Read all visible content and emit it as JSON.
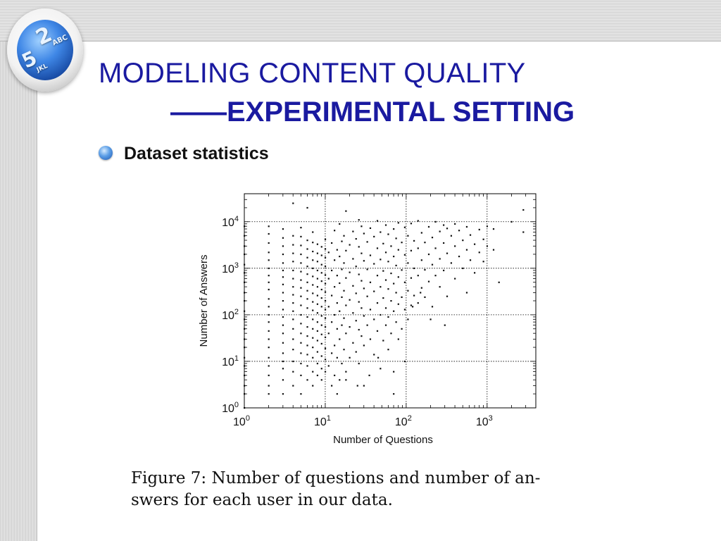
{
  "slide": {
    "title": "MODELING CONTENT QUALITY",
    "subtitle": "——EXPERIMENTAL SETTING",
    "bullet": "Dataset statistics",
    "badge_keys": [
      "2",
      "ABC",
      "5",
      "JKL"
    ],
    "caption_line1": "Figure 7:  Number of questions and number of an-",
    "caption_line2": "swers for each user in our data."
  },
  "colors": {
    "title": "#1a1aa0",
    "points": "#111111",
    "grid": "#000000"
  },
  "chart_data": {
    "type": "scatter",
    "xlabel": "Number of Questions",
    "ylabel": "Number of Answers",
    "xscale": "log",
    "yscale": "log",
    "xlim": [
      1,
      4000
    ],
    "ylim": [
      1,
      40000
    ],
    "grid": true,
    "xticks": [
      1,
      10,
      100,
      1000
    ],
    "yticks": [
      1,
      10,
      100,
      1000,
      10000
    ],
    "xtick_labels": [
      {
        "base": "10",
        "exp": "0"
      },
      {
        "base": "10",
        "exp": "1"
      },
      {
        "base": "10",
        "exp": "2"
      },
      {
        "base": "10",
        "exp": "3"
      }
    ],
    "ytick_labels": [
      {
        "base": "10",
        "exp": "0"
      },
      {
        "base": "10",
        "exp": "1"
      },
      {
        "base": "10",
        "exp": "2"
      },
      {
        "base": "10",
        "exp": "3"
      },
      {
        "base": "10",
        "exp": "4"
      }
    ],
    "points": [
      [
        1,
        1
      ],
      [
        1,
        2
      ],
      [
        1,
        3
      ],
      [
        1,
        5
      ],
      [
        1,
        8
      ],
      [
        1,
        12
      ],
      [
        1,
        20
      ],
      [
        1,
        30
      ],
      [
        1,
        50
      ],
      [
        1,
        80
      ],
      [
        1,
        120
      ],
      [
        1,
        200
      ],
      [
        1,
        300
      ],
      [
        1,
        500
      ],
      [
        1,
        800
      ],
      [
        1,
        1200
      ],
      [
        1,
        2000
      ],
      [
        1,
        3000
      ],
      [
        1,
        5000
      ],
      [
        1,
        8000
      ],
      [
        2,
        2
      ],
      [
        2,
        3
      ],
      [
        2,
        5
      ],
      [
        2,
        8
      ],
      [
        2,
        12
      ],
      [
        2,
        20
      ],
      [
        2,
        30
      ],
      [
        2,
        45
      ],
      [
        2,
        70
      ],
      [
        2,
        100
      ],
      [
        2,
        150
      ],
      [
        2,
        220
      ],
      [
        2,
        350
      ],
      [
        2,
        500
      ],
      [
        2,
        700
      ],
      [
        2,
        1000
      ],
      [
        2,
        1500
      ],
      [
        2,
        2200
      ],
      [
        2,
        3500
      ],
      [
        2,
        5500
      ],
      [
        2,
        8000
      ],
      [
        3,
        2
      ],
      [
        3,
        4
      ],
      [
        3,
        7
      ],
      [
        3,
        10
      ],
      [
        3,
        15
      ],
      [
        3,
        25
      ],
      [
        3,
        40
      ],
      [
        3,
        60
      ],
      [
        3,
        90
      ],
      [
        3,
        130
      ],
      [
        3,
        200
      ],
      [
        3,
        300
      ],
      [
        3,
        450
      ],
      [
        3,
        650
      ],
      [
        3,
        900
      ],
      [
        3,
        1300
      ],
      [
        3,
        2000
      ],
      [
        3,
        3000
      ],
      [
        3,
        4500
      ],
      [
        3,
        7000
      ],
      [
        4,
        3
      ],
      [
        4,
        6
      ],
      [
        4,
        10
      ],
      [
        4,
        18
      ],
      [
        4,
        30
      ],
      [
        4,
        50
      ],
      [
        4,
        80
      ],
      [
        4,
        120
      ],
      [
        4,
        180
      ],
      [
        4,
        270
      ],
      [
        4,
        400
      ],
      [
        4,
        600
      ],
      [
        4,
        900
      ],
      [
        4,
        1400
      ],
      [
        4,
        2100
      ],
      [
        4,
        3200
      ],
      [
        4,
        5000
      ],
      [
        4,
        25000
      ],
      [
        5,
        2
      ],
      [
        5,
        5
      ],
      [
        5,
        9
      ],
      [
        5,
        15
      ],
      [
        5,
        25
      ],
      [
        5,
        40
      ],
      [
        5,
        65
      ],
      [
        5,
        100
      ],
      [
        5,
        160
      ],
      [
        5,
        250
      ],
      [
        5,
        380
      ],
      [
        5,
        560
      ],
      [
        5,
        850
      ],
      [
        5,
        1300
      ],
      [
        5,
        2000
      ],
      [
        5,
        3100
      ],
      [
        5,
        4800
      ],
      [
        5,
        7500
      ],
      [
        6,
        4
      ],
      [
        6,
        8
      ],
      [
        6,
        14
      ],
      [
        6,
        22
      ],
      [
        6,
        35
      ],
      [
        6,
        55
      ],
      [
        6,
        90
      ],
      [
        6,
        140
      ],
      [
        6,
        220
      ],
      [
        6,
        330
      ],
      [
        6,
        500
      ],
      [
        6,
        750
      ],
      [
        6,
        1100
      ],
      [
        6,
        1700
      ],
      [
        6,
        2600
      ],
      [
        6,
        4000
      ],
      [
        6,
        20000
      ],
      [
        7,
        3
      ],
      [
        7,
        6
      ],
      [
        7,
        12
      ],
      [
        7,
        20
      ],
      [
        7,
        32
      ],
      [
        7,
        50
      ],
      [
        7,
        80
      ],
      [
        7,
        125
      ],
      [
        7,
        190
      ],
      [
        7,
        290
      ],
      [
        7,
        440
      ],
      [
        7,
        670
      ],
      [
        7,
        1000
      ],
      [
        7,
        1500
      ],
      [
        7,
        2300
      ],
      [
        7,
        3600
      ],
      [
        7,
        6000
      ],
      [
        8,
        5
      ],
      [
        8,
        9
      ],
      [
        8,
        16
      ],
      [
        8,
        28
      ],
      [
        8,
        45
      ],
      [
        8,
        70
      ],
      [
        8,
        110
      ],
      [
        8,
        170
      ],
      [
        8,
        260
      ],
      [
        8,
        400
      ],
      [
        8,
        600
      ],
      [
        8,
        900
      ],
      [
        8,
        1400
      ],
      [
        8,
        2100
      ],
      [
        8,
        3300
      ],
      [
        9,
        4
      ],
      [
        9,
        7
      ],
      [
        9,
        13
      ],
      [
        9,
        24
      ],
      [
        9,
        38
      ],
      [
        9,
        60
      ],
      [
        9,
        95
      ],
      [
        9,
        150
      ],
      [
        9,
        230
      ],
      [
        9,
        350
      ],
      [
        9,
        530
      ],
      [
        9,
        800
      ],
      [
        9,
        1200
      ],
      [
        9,
        1900
      ],
      [
        9,
        2900
      ],
      [
        10,
        6
      ],
      [
        10,
        11
      ],
      [
        10,
        19
      ],
      [
        10,
        33
      ],
      [
        10,
        55
      ],
      [
        10,
        85
      ],
      [
        10,
        130
      ],
      [
        10,
        200
      ],
      [
        10,
        310
      ],
      [
        10,
        470
      ],
      [
        10,
        720
      ],
      [
        10,
        1100
      ],
      [
        10,
        1700
      ],
      [
        10,
        2600
      ],
      [
        10,
        4200
      ],
      [
        11,
        8
      ],
      [
        11,
        40
      ],
      [
        11,
        150
      ],
      [
        11,
        600
      ],
      [
        11,
        2200
      ],
      [
        12,
        3
      ],
      [
        12,
        15
      ],
      [
        12,
        70
      ],
      [
        12,
        260
      ],
      [
        12,
        900
      ],
      [
        12,
        3500
      ],
      [
        13,
        5
      ],
      [
        13,
        22
      ],
      [
        13,
        100
      ],
      [
        13,
        400
      ],
      [
        13,
        1500
      ],
      [
        13,
        6500
      ],
      [
        14,
        2
      ],
      [
        14,
        12
      ],
      [
        14,
        50
      ],
      [
        14,
        180
      ],
      [
        14,
        700
      ],
      [
        14,
        2500
      ],
      [
        15,
        4
      ],
      [
        15,
        30
      ],
      [
        15,
        120
      ],
      [
        15,
        480
      ],
      [
        15,
        1800
      ],
      [
        15,
        9000
      ],
      [
        16,
        9
      ],
      [
        16,
        60
      ],
      [
        16,
        240
      ],
      [
        16,
        950
      ],
      [
        16,
        3800
      ],
      [
        17,
        18
      ],
      [
        17,
        85
      ],
      [
        17,
        330
      ],
      [
        17,
        1300
      ],
      [
        17,
        5000
      ],
      [
        18,
        6
      ],
      [
        18,
        40
      ],
      [
        18,
        160
      ],
      [
        18,
        620
      ],
      [
        18,
        2400
      ],
      [
        18,
        17000
      ],
      [
        20,
        12
      ],
      [
        20,
        55
      ],
      [
        20,
        210
      ],
      [
        20,
        820
      ],
      [
        20,
        3200
      ],
      [
        22,
        25
      ],
      [
        22,
        110
      ],
      [
        22,
        420
      ],
      [
        22,
        1600
      ],
      [
        22,
        6200
      ],
      [
        24,
        16
      ],
      [
        24,
        75
      ],
      [
        24,
        290
      ],
      [
        24,
        1100
      ],
      [
        24,
        4300
      ],
      [
        26,
        9
      ],
      [
        26,
        48
      ],
      [
        26,
        190
      ],
      [
        26,
        740
      ],
      [
        26,
        2900
      ],
      [
        26,
        11000
      ],
      [
        28,
        35
      ],
      [
        28,
        140
      ],
      [
        28,
        540
      ],
      [
        28,
        2100
      ],
      [
        28,
        8000
      ],
      [
        30,
        3
      ],
      [
        30,
        22
      ],
      [
        30,
        95
      ],
      [
        30,
        370
      ],
      [
        30,
        1450
      ],
      [
        30,
        5600
      ],
      [
        33,
        60
      ],
      [
        33,
        250
      ],
      [
        33,
        950
      ],
      [
        33,
        3700
      ],
      [
        36,
        30
      ],
      [
        36,
        130
      ],
      [
        36,
        500
      ],
      [
        36,
        1900
      ],
      [
        36,
        7300
      ],
      [
        40,
        14
      ],
      [
        40,
        80
      ],
      [
        40,
        320
      ],
      [
        40,
        1250
      ],
      [
        40,
        4800
      ],
      [
        44,
        45
      ],
      [
        44,
        180
      ],
      [
        44,
        700
      ],
      [
        44,
        2700
      ],
      [
        44,
        10500
      ],
      [
        48,
        7
      ],
      [
        48,
        100
      ],
      [
        48,
        400
      ],
      [
        48,
        1550
      ],
      [
        48,
        6000
      ],
      [
        52,
        28
      ],
      [
        52,
        230
      ],
      [
        52,
        880
      ],
      [
        52,
        3400
      ],
      [
        56,
        60
      ],
      [
        56,
        140
      ],
      [
        56,
        560
      ],
      [
        56,
        2200
      ],
      [
        56,
        8500
      ],
      [
        60,
        18
      ],
      [
        60,
        90
      ],
      [
        60,
        360
      ],
      [
        60,
        1400
      ],
      [
        60,
        5400
      ],
      [
        65,
        40
      ],
      [
        65,
        200
      ],
      [
        65,
        780
      ],
      [
        65,
        3000
      ],
      [
        70,
        6
      ],
      [
        70,
        120
      ],
      [
        70,
        470
      ],
      [
        70,
        1800
      ],
      [
        70,
        7000
      ],
      [
        75,
        70
      ],
      [
        75,
        300
      ],
      [
        75,
        1150
      ],
      [
        75,
        4400
      ],
      [
        80,
        30
      ],
      [
        80,
        170
      ],
      [
        80,
        650
      ],
      [
        80,
        2500
      ],
      [
        80,
        9500
      ],
      [
        88,
        50
      ],
      [
        88,
        240
      ],
      [
        88,
        920
      ],
      [
        88,
        3600
      ],
      [
        96,
        10
      ],
      [
        96,
        130
      ],
      [
        96,
        500
      ],
      [
        96,
        1950
      ],
      [
        96,
        7600
      ],
      [
        105,
        80
      ],
      [
        105,
        330
      ],
      [
        105,
        1300
      ],
      [
        105,
        5000
      ],
      [
        115,
        160
      ],
      [
        115,
        620
      ],
      [
        115,
        2400
      ],
      [
        115,
        9200
      ],
      [
        125,
        260
      ],
      [
        125,
        1000
      ],
      [
        125,
        3900
      ],
      [
        140,
        180
      ],
      [
        140,
        700
      ],
      [
        140,
        2700
      ],
      [
        140,
        10500
      ],
      [
        155,
        380
      ],
      [
        155,
        1500
      ],
      [
        155,
        5800
      ],
      [
        170,
        240
      ],
      [
        170,
        930
      ],
      [
        170,
        3600
      ],
      [
        190,
        520
      ],
      [
        190,
        2000
      ],
      [
        190,
        7800
      ],
      [
        210,
        150
      ],
      [
        210,
        1200
      ],
      [
        210,
        4600
      ],
      [
        230,
        700
      ],
      [
        230,
        2700
      ],
      [
        230,
        10000
      ],
      [
        260,
        400
      ],
      [
        260,
        1600
      ],
      [
        260,
        6200
      ],
      [
        290,
        900
      ],
      [
        290,
        3500
      ],
      [
        290,
        8500
      ],
      [
        320,
        250
      ],
      [
        320,
        2100
      ],
      [
        320,
        7200
      ],
      [
        360,
        1300
      ],
      [
        360,
        5000
      ],
      [
        400,
        600
      ],
      [
        400,
        3000
      ],
      [
        400,
        9000
      ],
      [
        450,
        1800
      ],
      [
        450,
        6500
      ],
      [
        500,
        1000
      ],
      [
        500,
        4000
      ],
      [
        560,
        300
      ],
      [
        560,
        2500
      ],
      [
        560,
        7800
      ],
      [
        620,
        1500
      ],
      [
        620,
        5200
      ],
      [
        700,
        800
      ],
      [
        700,
        3300
      ],
      [
        800,
        2200
      ],
      [
        800,
        6800
      ],
      [
        900,
        1400
      ],
      [
        900,
        4200
      ],
      [
        1000,
        3000
      ],
      [
        1000,
        8000
      ],
      [
        1200,
        2500
      ],
      [
        1200,
        7000
      ],
      [
        1400,
        500
      ],
      [
        2000,
        10000
      ],
      [
        2800,
        6000
      ],
      [
        2800,
        18000
      ],
      [
        120,
        150
      ],
      [
        150,
        300
      ],
      [
        200,
        80
      ],
      [
        300,
        60
      ],
      [
        70,
        2
      ],
      [
        18,
        4
      ],
      [
        35,
        5
      ],
      [
        45,
        12
      ],
      [
        25,
        3
      ]
    ]
  }
}
